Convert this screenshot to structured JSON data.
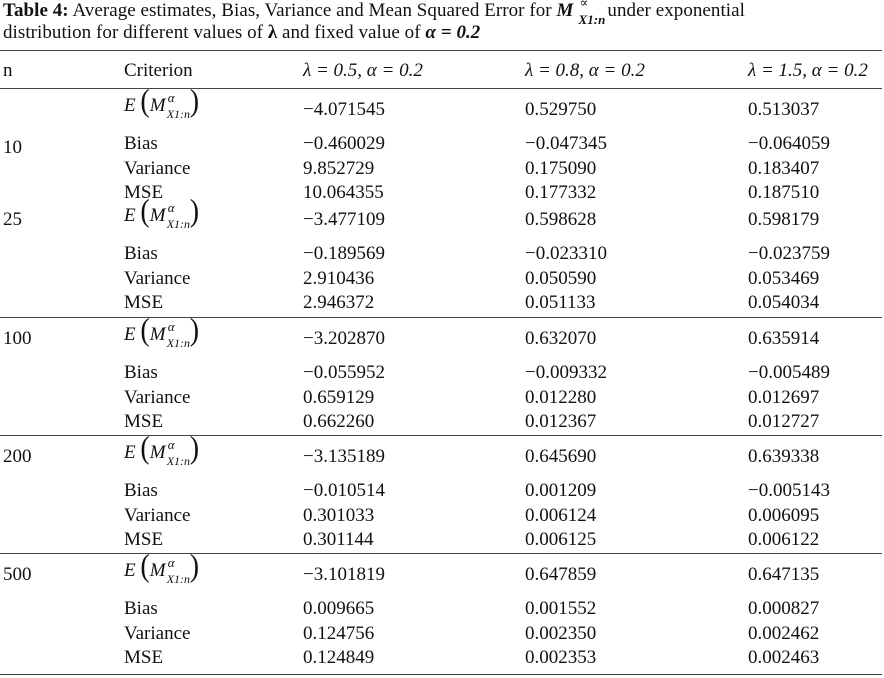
{
  "caption": {
    "label": "Table 4:",
    "line1_text": " Average estimates, Bias, Variance and Mean Squared Error for ",
    "symbol": "M",
    "symbol_sup": "∝",
    "symbol_sub": "X1:n",
    "line1_tail": "under exponential",
    "line2_text": "distribution for different values of ",
    "lambda_symbol": "λ",
    "line2_mid": " and fixed value of ",
    "alpha_fixed": "α = 0.2"
  },
  "header": {
    "n": "n",
    "criterion": "Criterion",
    "col1": "λ = 0.5, α = 0.2",
    "col2": "λ = 0.8, α = 0.2",
    "col3": "λ = 1.5, α = 0.2"
  },
  "expectation_label": {
    "e": "E",
    "open": "(",
    "m": "M",
    "sup": "α",
    "sub": "X1:n",
    "close": ")"
  },
  "groups": [
    {
      "n": "10",
      "rows": [
        {
          "criterion": "E",
          "v1": "−4.071545",
          "v2": "0.529750",
          "v3": "0.513037"
        },
        {
          "criterion": "Bias",
          "v1": "−0.460029",
          "v2": "−0.047345",
          "v3": "−0.064059"
        },
        {
          "criterion": "Variance",
          "v1": "9.852729",
          "v2": "0.175090",
          "v3": "0.183407"
        },
        {
          "criterion": "MSE",
          "v1": "10.064355",
          "v2": "0.177332",
          "v3": "0.187510"
        }
      ]
    },
    {
      "n": "25",
      "rows": [
        {
          "criterion": "E",
          "v1": "−3.477109",
          "v2": "0.598628",
          "v3": "0.598179"
        },
        {
          "criterion": "Bias",
          "v1": "−0.189569",
          "v2": "−0.023310",
          "v3": "−0.023759"
        },
        {
          "criterion": "Variance",
          "v1": "2.910436",
          "v2": "0.050590",
          "v3": "0.053469"
        },
        {
          "criterion": "MSE",
          "v1": "2.946372",
          "v2": "0.051133",
          "v3": "0.054034"
        }
      ]
    },
    {
      "n": "100",
      "rows": [
        {
          "criterion": "E",
          "v1": "−3.202870",
          "v2": "0.632070",
          "v3": "0.635914"
        },
        {
          "criterion": "Bias",
          "v1": "−0.055952",
          "v2": "−0.009332",
          "v3": "−0.005489"
        },
        {
          "criterion": "Variance",
          "v1": "0.659129",
          "v2": "0.012280",
          "v3": "0.012697"
        },
        {
          "criterion": "MSE",
          "v1": "0.662260",
          "v2": "0.012367",
          "v3": "0.012727"
        }
      ]
    },
    {
      "n": "200",
      "rows": [
        {
          "criterion": "E",
          "v1": "−3.135189",
          "v2": "0.645690",
          "v3": "0.639338"
        },
        {
          "criterion": "Bias",
          "v1": "−0.010514",
          "v2": "0.001209",
          "v3": "−0.005143"
        },
        {
          "criterion": "Variance",
          "v1": "0.301033",
          "v2": "0.006124",
          "v3": "0.006095"
        },
        {
          "criterion": "MSE",
          "v1": "0.301144",
          "v2": "0.006125",
          "v3": "0.006122"
        }
      ]
    },
    {
      "n": "500",
      "rows": [
        {
          "criterion": "E",
          "v1": "−3.101819",
          "v2": "0.647859",
          "v3": "0.647135"
        },
        {
          "criterion": "Bias",
          "v1": "0.009665",
          "v2": "0.001552",
          "v3": "0.000827"
        },
        {
          "criterion": "Variance",
          "v1": "0.124756",
          "v2": "0.002350",
          "v3": "0.002462"
        },
        {
          "criterion": "MSE",
          "v1": "0.124849",
          "v2": "0.002353",
          "v3": "0.002463"
        }
      ]
    }
  ]
}
